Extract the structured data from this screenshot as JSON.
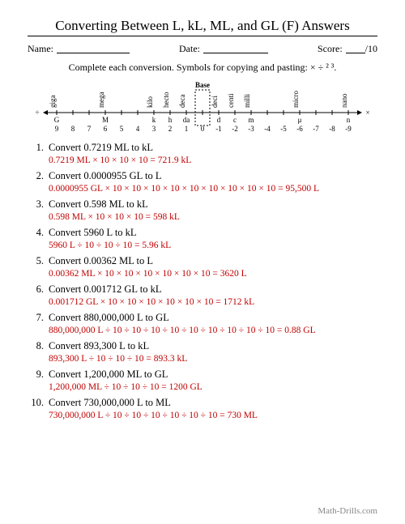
{
  "title": "Converting Between L, kL, ML, and GL (F) Answers",
  "meta": {
    "name_label": "Name:",
    "date_label": "Date:",
    "score_label": "Score:",
    "score_suffix": "/10"
  },
  "instructions": "Complete each conversion. Symbols for copying and pasting: × ÷ ² ³.",
  "scale": {
    "left_symbol": "÷",
    "right_symbol": "×",
    "base_label": "Base",
    "names": [
      "giga",
      "",
      "",
      "mega",
      "",
      "",
      "kilo",
      "hecto",
      "deca",
      "",
      "deci",
      "centi",
      "milli",
      "",
      "",
      "micro",
      "",
      "",
      "nano"
    ],
    "letters": [
      "G",
      "",
      "",
      "M",
      "",
      "",
      "k",
      "h",
      "da",
      "",
      "d",
      "c",
      "m",
      "",
      "",
      "μ",
      "",
      "",
      "n"
    ],
    "powers": [
      "9",
      "8",
      "7",
      "6",
      "5",
      "4",
      "3",
      "2",
      "1",
      "0",
      "-1",
      "-2",
      "-3",
      "-4",
      "-5",
      "-6",
      "-7",
      "-8",
      "-9"
    ]
  },
  "problems": [
    {
      "n": "1.",
      "q": "Convert 0.7219 ML to kL",
      "a": "0.7219 ML × 10 × 10 × 10 = 721.9 kL"
    },
    {
      "n": "2.",
      "q": "Convert 0.0000955 GL to L",
      "a": "0.0000955 GL × 10 × 10 × 10 × 10 × 10 × 10 × 10 × 10 × 10 = 95,500 L"
    },
    {
      "n": "3.",
      "q": "Convert 0.598 ML to kL",
      "a": "0.598 ML × 10 × 10 × 10 = 598 kL"
    },
    {
      "n": "4.",
      "q": "Convert 5960 L to kL",
      "a": "5960 L ÷ 10 ÷ 10 ÷ 10 = 5.96 kL"
    },
    {
      "n": "5.",
      "q": "Convert 0.00362 ML to L",
      "a": "0.00362 ML × 10 × 10 × 10 × 10 × 10 × 10 = 3620 L"
    },
    {
      "n": "6.",
      "q": "Convert 0.001712 GL to kL",
      "a": "0.001712 GL × 10 × 10 × 10 × 10 × 10 × 10 = 1712 kL"
    },
    {
      "n": "7.",
      "q": "Convert 880,000,000 L to GL",
      "a": "880,000,000 L ÷ 10 ÷ 10 ÷ 10 ÷ 10 ÷ 10 ÷ 10 ÷ 10 ÷ 10 ÷ 10 = 0.88 GL"
    },
    {
      "n": "8.",
      "q": "Convert 893,300 L to kL",
      "a": "893,300 L ÷ 10 ÷ 10 ÷ 10 = 893.3 kL"
    },
    {
      "n": "9.",
      "q": "Convert 1,200,000 ML to GL",
      "a": "1,200,000 ML ÷ 10 ÷ 10 ÷ 10 = 1200 GL"
    },
    {
      "n": "10.",
      "q": "Convert 730,000,000 L to ML",
      "a": "730,000,000 L ÷ 10 ÷ 10 ÷ 10 ÷ 10 ÷ 10 ÷ 10 = 730 ML"
    }
  ],
  "footer": "Math-Drills.com"
}
